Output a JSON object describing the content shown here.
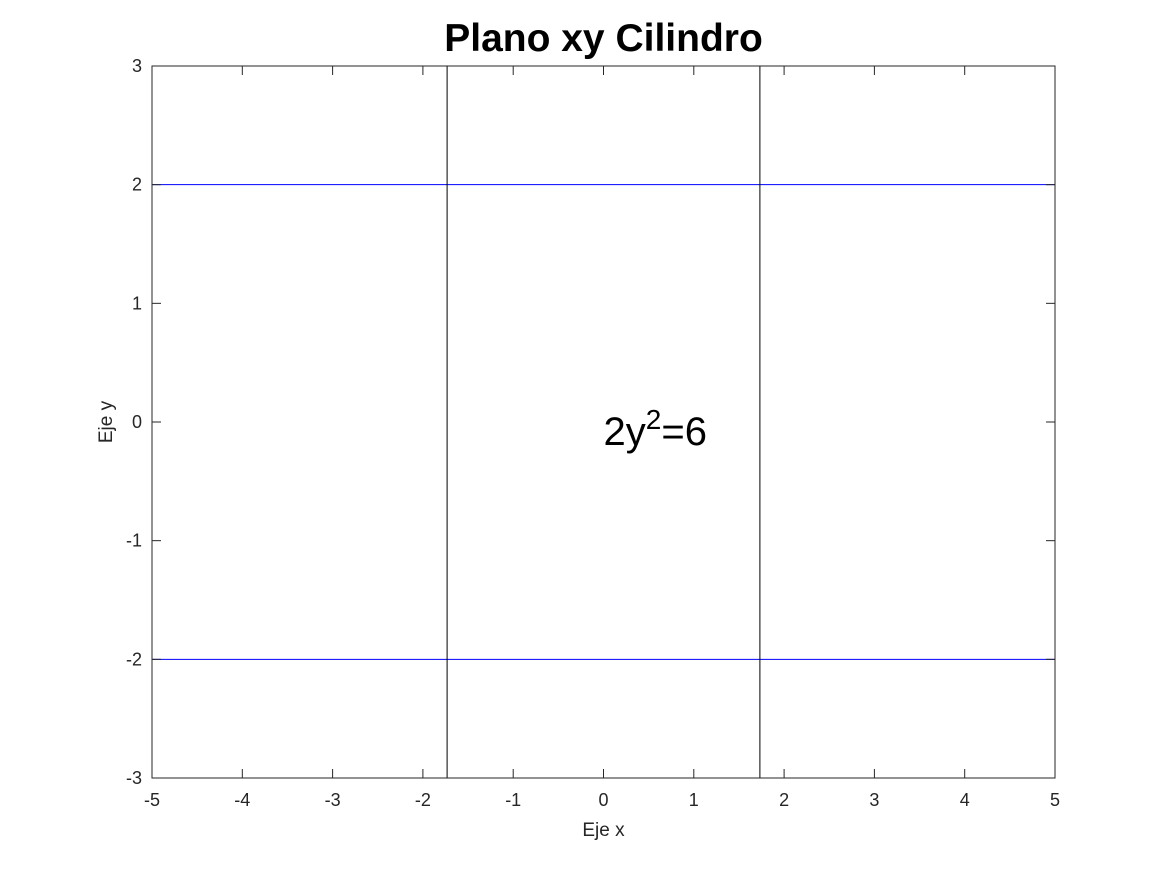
{
  "chart_data": {
    "type": "line",
    "title": "Plano xy Cilindro",
    "xlabel": "Eje x",
    "ylabel": "Eje y",
    "xlim": [
      -5,
      5
    ],
    "ylim": [
      -3,
      3
    ],
    "xticks": [
      -5,
      -4,
      -3,
      -2,
      -1,
      0,
      1,
      2,
      3,
      4,
      5
    ],
    "yticks": [
      -3,
      -2,
      -1,
      0,
      1,
      2,
      3
    ],
    "grid": false,
    "box": true,
    "series": [
      {
        "kind": "horizontal",
        "y": 2,
        "x": [
          -5,
          5
        ],
        "color": "#0000ff"
      },
      {
        "kind": "horizontal",
        "y": -2,
        "x": [
          -5,
          5
        ],
        "color": "#0000ff"
      },
      {
        "kind": "vertical",
        "x": -1.732,
        "y": [
          -3,
          3
        ],
        "color": "#000000"
      },
      {
        "kind": "vertical",
        "x": 1.732,
        "y": [
          -3,
          3
        ],
        "color": "#000000"
      }
    ],
    "annotations": [
      {
        "base": "2y",
        "sup": "2",
        "rest": "=6",
        "x": 0,
        "y": 0
      }
    ]
  }
}
